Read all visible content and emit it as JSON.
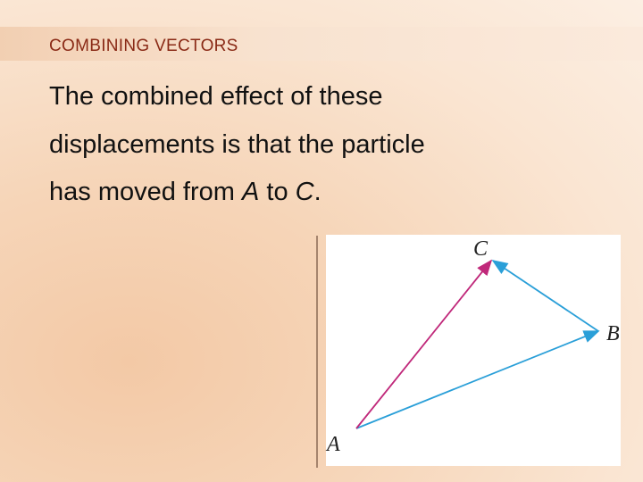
{
  "header": {
    "title": "COMBINING VECTORS"
  },
  "body": {
    "lines": [
      [
        {
          "text": "The combined effect of these",
          "italic": false
        }
      ],
      [
        {
          "text": "displacements is that the particle",
          "italic": false
        }
      ],
      [
        {
          "text": "has moved from ",
          "italic": false
        },
        {
          "text": "A",
          "italic": true
        },
        {
          "text": " to ",
          "italic": false
        },
        {
          "text": "C",
          "italic": true
        },
        {
          "text": ".",
          "italic": false
        }
      ]
    ]
  },
  "figure": {
    "points": [
      {
        "label": "A"
      },
      {
        "label": "B"
      },
      {
        "label": "C"
      }
    ]
  }
}
